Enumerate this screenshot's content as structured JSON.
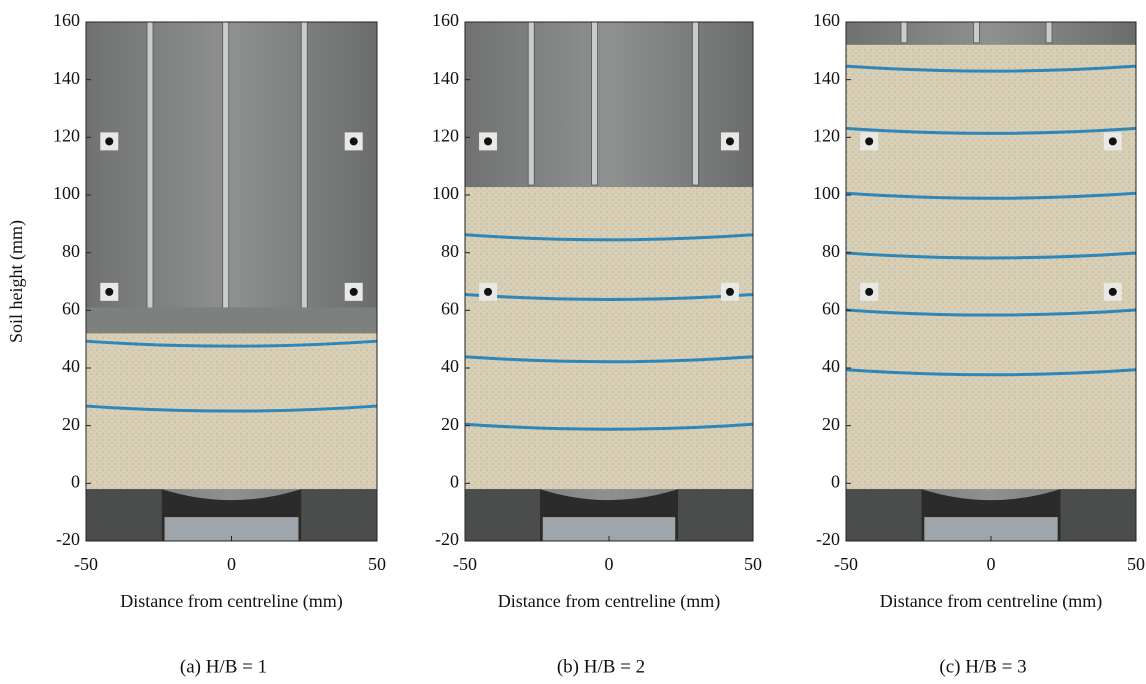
{
  "chart_data": [
    {
      "type": "photo",
      "caption": "(a) H/B = 1",
      "xlabel": "Distance from centreline (mm)",
      "ylabel": "Soil height (mm)",
      "xlim": [
        -50,
        50
      ],
      "xticks": [
        -50,
        0,
        50
      ],
      "ylim": [
        -20,
        160
      ],
      "yticks": [
        -20,
        0,
        20,
        40,
        60,
        80,
        100,
        120,
        140,
        160
      ]
    },
    {
      "type": "photo",
      "caption": "(b) H/B = 2",
      "xlabel": "Distance from centreline (mm)",
      "xlim": [
        -50,
        50
      ],
      "xticks": [
        -50,
        0,
        50
      ],
      "ylim": [
        -20,
        160
      ],
      "yticks": [
        -20,
        0,
        20,
        40,
        60,
        80,
        100,
        120,
        140,
        160
      ]
    },
    {
      "type": "photo",
      "caption": "(c) H/B = 3",
      "xlabel": "Distance from centreline (mm)",
      "xlim": [
        -50,
        50
      ],
      "xticks": [
        -50,
        0,
        50
      ],
      "ylim": [
        -20,
        160
      ],
      "yticks": [
        -20,
        0,
        20,
        40,
        60,
        80,
        100,
        120,
        140,
        160
      ]
    }
  ]
}
